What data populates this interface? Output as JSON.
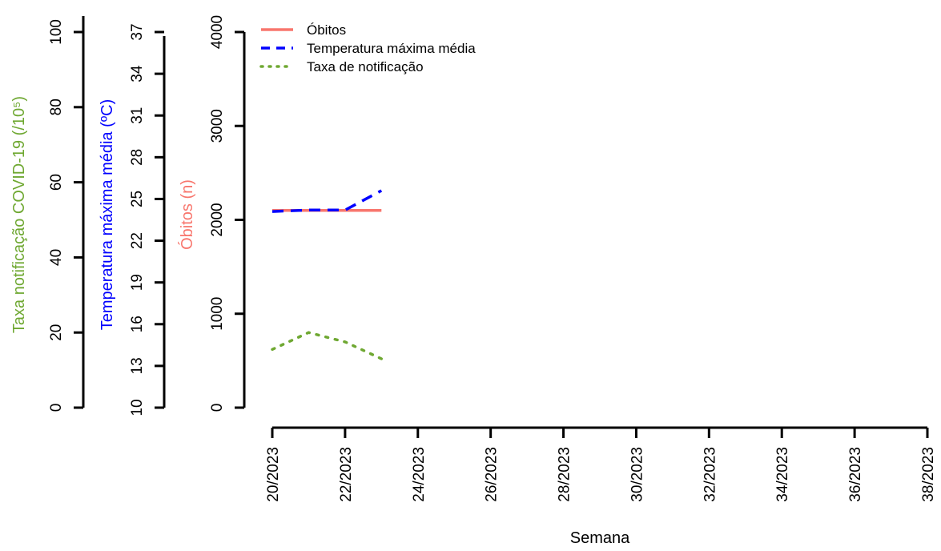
{
  "chart_data": {
    "type": "line",
    "xlabel": "Semana",
    "x_ticks": [
      "20/2023",
      "22/2023",
      "24/2023",
      "26/2023",
      "28/2023",
      "30/2023",
      "32/2023",
      "34/2023",
      "36/2023",
      "38/2023"
    ],
    "x_weeks": [
      20,
      21,
      22,
      23
    ],
    "xlim": [
      20,
      38
    ],
    "axes": {
      "obitos": {
        "label": "Óbitos (n)",
        "color": "#F8766D",
        "ylim": [
          0,
          4000
        ],
        "ticks": [
          "0",
          "1000",
          "2000",
          "3000",
          "4000"
        ]
      },
      "temperatura": {
        "label": "Temperatura máxima média (ºC)",
        "color": "#0000FF",
        "ylim": [
          10,
          37
        ],
        "ticks": [
          "10",
          "13",
          "16",
          "19",
          "22",
          "25",
          "28",
          "31",
          "34",
          "37"
        ]
      },
      "taxa": {
        "label": "Taxa notificação COVID-19 (/10⁵)",
        "color": "#6FA832",
        "ylim": [
          0,
          100
        ],
        "ticks": [
          "0",
          "20",
          "40",
          "60",
          "80",
          "100"
        ]
      }
    },
    "series": [
      {
        "name": "Óbitos",
        "axis": "obitos",
        "style": "solid",
        "color": "#F8766D",
        "values": [
          2100,
          2100,
          2100,
          2100
        ]
      },
      {
        "name": "Temperatura máxima média",
        "axis": "temperatura",
        "style": "dashed",
        "color": "#0000FF",
        "values": [
          24.1,
          24.2,
          24.2,
          25.6
        ]
      },
      {
        "name": "Taxa de notificação",
        "axis": "taxa",
        "style": "dotted",
        "color": "#6FA832",
        "values": [
          15.5,
          20.0,
          17.5,
          13.0
        ]
      }
    ],
    "legend_position": "top-left"
  }
}
